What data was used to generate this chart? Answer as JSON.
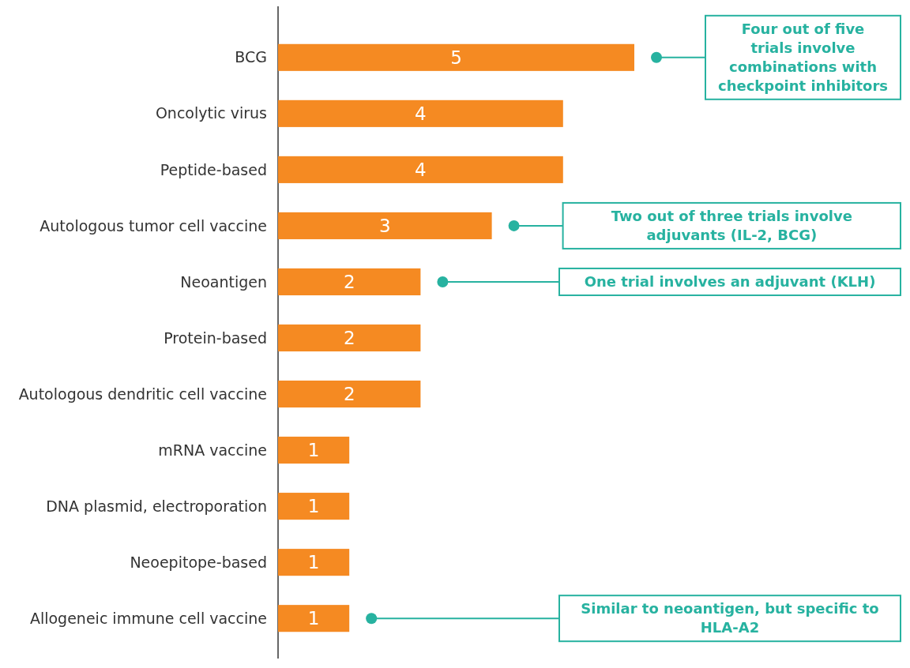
{
  "chart_data": {
    "type": "bar",
    "orientation": "horizontal",
    "data_labels": true,
    "categories": [
      "BCG",
      "Oncolytic virus",
      "Peptide-based",
      "Autologous tumor cell vaccine",
      "Neoantigen",
      "Protein-based",
      "Autologous dendritic cell vaccine",
      "mRNA vaccine",
      "DNA plasmid, electroporation",
      "Neoepitope-based",
      "Allogeneic immune cell vaccine"
    ],
    "values": [
      5,
      4,
      4,
      3,
      2,
      2,
      2,
      1,
      1,
      1,
      1
    ],
    "color": "#f58a22",
    "annotations": [
      "Four out of five trials involve combinations with checkpoint inhibitors",
      "Two out of three trials involve adjuvants (IL-2, BCG)",
      "One trial involves an adjuvant (KLH)",
      "Similar to neoantigen, but specific to HLA-A2"
    ]
  }
}
